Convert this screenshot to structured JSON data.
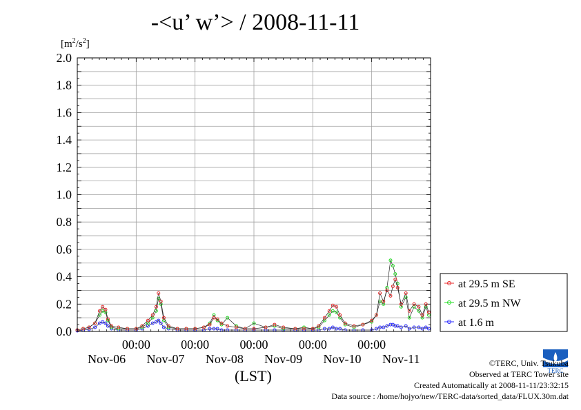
{
  "title": "-<u’ w’> / 2008-11-11",
  "y_unit": {
    "base": "[m",
    "exp": "2",
    "mid": "/s",
    "exp2": "2",
    "end": "]"
  },
  "x_axis_label": "(LST)",
  "credits": {
    "copyright": "©TERC, Univ. Tsukuba",
    "observed": "Observed at TERC Tower site",
    "created": "Created Automatically at 2008-11-11/23:32:15",
    "source": "Data source : /home/hojyo/new/TERC-data/sorted_data/FLUX.30m.dat"
  },
  "logo_text": "TERC",
  "colors": {
    "se": "#e8282a",
    "nw": "#22dd22",
    "low": "#2b2bff",
    "grid": "#a0a0a0"
  },
  "chart_data": {
    "type": "line",
    "title": "-<u’ w’> / 2008-11-11",
    "ylabel": "[m2/s2]",
    "xlabel": "(LST)",
    "ylim": [
      0,
      2.0
    ],
    "xlim_days": [
      0,
      6
    ],
    "yticks": [
      "0.0",
      "0.2",
      "0.4",
      "0.6",
      "0.8",
      "1.0",
      "1.2",
      "1.4",
      "1.6",
      "1.8",
      "2.0"
    ],
    "x_ticks_time": [
      "00:00",
      "00:00",
      "00:00",
      "00:00",
      "00:00"
    ],
    "x_ticks_date": [
      "Nov-06",
      "Nov-07",
      "Nov-08",
      "Nov-09",
      "Nov-10",
      "Nov-11"
    ],
    "grid": true,
    "legend_position": "right",
    "series": [
      {
        "name": "at 29.5 m SE",
        "color": "#e8282a",
        "points": [
          [
            0,
            0.01
          ],
          [
            0.1,
            0.02
          ],
          [
            0.2,
            0.03
          ],
          [
            0.3,
            0.06
          ],
          [
            0.38,
            0.15
          ],
          [
            0.43,
            0.18
          ],
          [
            0.48,
            0.16
          ],
          [
            0.52,
            0.09
          ],
          [
            0.58,
            0.04
          ],
          [
            0.7,
            0.03
          ],
          [
            0.85,
            0.02
          ],
          [
            1.0,
            0.02
          ],
          [
            1.1,
            0.04
          ],
          [
            1.2,
            0.08
          ],
          [
            1.28,
            0.12
          ],
          [
            1.34,
            0.18
          ],
          [
            1.38,
            0.28
          ],
          [
            1.42,
            0.22
          ],
          [
            1.47,
            0.1
          ],
          [
            1.55,
            0.04
          ],
          [
            1.7,
            0.02
          ],
          [
            1.85,
            0.02
          ],
          [
            2.0,
            0.02
          ],
          [
            2.15,
            0.03
          ],
          [
            2.25,
            0.05
          ],
          [
            2.32,
            0.1
          ],
          [
            2.38,
            0.09
          ],
          [
            2.45,
            0.06
          ],
          [
            2.55,
            0.04
          ],
          [
            2.7,
            0.03
          ],
          [
            2.85,
            0.02
          ],
          [
            3.0,
            0.02
          ],
          [
            3.2,
            0.03
          ],
          [
            3.35,
            0.05
          ],
          [
            3.5,
            0.03
          ],
          [
            3.7,
            0.02
          ],
          [
            3.85,
            0.02
          ],
          [
            4.0,
            0.02
          ],
          [
            4.1,
            0.04
          ],
          [
            4.2,
            0.1
          ],
          [
            4.28,
            0.15
          ],
          [
            4.34,
            0.19
          ],
          [
            4.4,
            0.18
          ],
          [
            4.46,
            0.12
          ],
          [
            4.55,
            0.06
          ],
          [
            4.7,
            0.04
          ],
          [
            4.85,
            0.05
          ],
          [
            5.0,
            0.08
          ],
          [
            5.08,
            0.12
          ],
          [
            5.14,
            0.28
          ],
          [
            5.2,
            0.22
          ],
          [
            5.26,
            0.3
          ],
          [
            5.32,
            0.26
          ],
          [
            5.36,
            0.33
          ],
          [
            5.4,
            0.38
          ],
          [
            5.44,
            0.32
          ],
          [
            5.5,
            0.2
          ],
          [
            5.58,
            0.28
          ],
          [
            5.64,
            0.15
          ],
          [
            5.72,
            0.2
          ],
          [
            5.8,
            0.18
          ],
          [
            5.86,
            0.12
          ],
          [
            5.92,
            0.2
          ],
          [
            5.97,
            0.14
          ]
        ]
      },
      {
        "name": "at 29.5 m NW",
        "color": "#22dd22",
        "points": [
          [
            0,
            0.01
          ],
          [
            0.1,
            0.02
          ],
          [
            0.2,
            0.03
          ],
          [
            0.3,
            0.06
          ],
          [
            0.38,
            0.12
          ],
          [
            0.43,
            0.15
          ],
          [
            0.48,
            0.14
          ],
          [
            0.52,
            0.08
          ],
          [
            0.58,
            0.03
          ],
          [
            0.7,
            0.02
          ],
          [
            0.85,
            0.02
          ],
          [
            1.0,
            0.02
          ],
          [
            1.1,
            0.03
          ],
          [
            1.2,
            0.06
          ],
          [
            1.28,
            0.1
          ],
          [
            1.34,
            0.15
          ],
          [
            1.38,
            0.24
          ],
          [
            1.42,
            0.2
          ],
          [
            1.47,
            0.08
          ],
          [
            1.55,
            0.03
          ],
          [
            1.7,
            0.02
          ],
          [
            1.85,
            0.02
          ],
          [
            2.0,
            0.02
          ],
          [
            2.15,
            0.03
          ],
          [
            2.25,
            0.06
          ],
          [
            2.32,
            0.12
          ],
          [
            2.38,
            0.08
          ],
          [
            2.45,
            0.05
          ],
          [
            2.55,
            0.1
          ],
          [
            2.7,
            0.04
          ],
          [
            2.85,
            0.02
          ],
          [
            3.0,
            0.06
          ],
          [
            3.2,
            0.03
          ],
          [
            3.35,
            0.04
          ],
          [
            3.5,
            0.02
          ],
          [
            3.7,
            0.02
          ],
          [
            3.85,
            0.03
          ],
          [
            4.0,
            0.02
          ],
          [
            4.1,
            0.03
          ],
          [
            4.2,
            0.08
          ],
          [
            4.28,
            0.12
          ],
          [
            4.34,
            0.15
          ],
          [
            4.4,
            0.14
          ],
          [
            4.46,
            0.1
          ],
          [
            4.55,
            0.05
          ],
          [
            4.7,
            0.03
          ],
          [
            4.85,
            0.05
          ],
          [
            5.0,
            0.07
          ],
          [
            5.08,
            0.12
          ],
          [
            5.14,
            0.22
          ],
          [
            5.2,
            0.2
          ],
          [
            5.26,
            0.32
          ],
          [
            5.32,
            0.52
          ],
          [
            5.36,
            0.48
          ],
          [
            5.4,
            0.42
          ],
          [
            5.44,
            0.35
          ],
          [
            5.5,
            0.18
          ],
          [
            5.58,
            0.25
          ],
          [
            5.64,
            0.1
          ],
          [
            5.72,
            0.18
          ],
          [
            5.8,
            0.15
          ],
          [
            5.86,
            0.1
          ],
          [
            5.92,
            0.18
          ],
          [
            5.97,
            0.12
          ]
        ]
      },
      {
        "name": "at 1.6 m",
        "color": "#2b2bff",
        "points": [
          [
            0,
            0.005
          ],
          [
            0.1,
            0.01
          ],
          [
            0.2,
            0.015
          ],
          [
            0.3,
            0.03
          ],
          [
            0.38,
            0.06
          ],
          [
            0.43,
            0.07
          ],
          [
            0.48,
            0.06
          ],
          [
            0.52,
            0.04
          ],
          [
            0.58,
            0.02
          ],
          [
            0.7,
            0.01
          ],
          [
            0.85,
            0.01
          ],
          [
            1.0,
            0.01
          ],
          [
            1.1,
            0.02
          ],
          [
            1.2,
            0.04
          ],
          [
            1.28,
            0.06
          ],
          [
            1.34,
            0.07
          ],
          [
            1.38,
            0.08
          ],
          [
            1.42,
            0.06
          ],
          [
            1.47,
            0.03
          ],
          [
            1.55,
            0.02
          ],
          [
            1.7,
            0.01
          ],
          [
            1.85,
            0.01
          ],
          [
            2.0,
            0.01
          ],
          [
            2.15,
            0.01
          ],
          [
            2.25,
            0.02
          ],
          [
            2.32,
            0.02
          ],
          [
            2.38,
            0.02
          ],
          [
            2.45,
            0.01
          ],
          [
            2.55,
            0.01
          ],
          [
            2.7,
            0.01
          ],
          [
            2.85,
            0.01
          ],
          [
            3.0,
            0.01
          ],
          [
            3.2,
            0.01
          ],
          [
            3.35,
            0.01
          ],
          [
            3.5,
            0.01
          ],
          [
            3.7,
            0.01
          ],
          [
            3.85,
            0.01
          ],
          [
            4.0,
            0.01
          ],
          [
            4.1,
            0.01
          ],
          [
            4.2,
            0.02
          ],
          [
            4.28,
            0.02
          ],
          [
            4.34,
            0.03
          ],
          [
            4.4,
            0.02
          ],
          [
            4.46,
            0.02
          ],
          [
            4.55,
            0.01
          ],
          [
            4.7,
            0.01
          ],
          [
            4.85,
            0.01
          ],
          [
            5.0,
            0.01
          ],
          [
            5.08,
            0.02
          ],
          [
            5.14,
            0.03
          ],
          [
            5.2,
            0.03
          ],
          [
            5.26,
            0.04
          ],
          [
            5.32,
            0.05
          ],
          [
            5.36,
            0.05
          ],
          [
            5.4,
            0.04
          ],
          [
            5.44,
            0.04
          ],
          [
            5.5,
            0.03
          ],
          [
            5.58,
            0.04
          ],
          [
            5.64,
            0.02
          ],
          [
            5.72,
            0.03
          ],
          [
            5.8,
            0.03
          ],
          [
            5.86,
            0.02
          ],
          [
            5.92,
            0.03
          ],
          [
            5.97,
            0.02
          ]
        ]
      }
    ]
  }
}
